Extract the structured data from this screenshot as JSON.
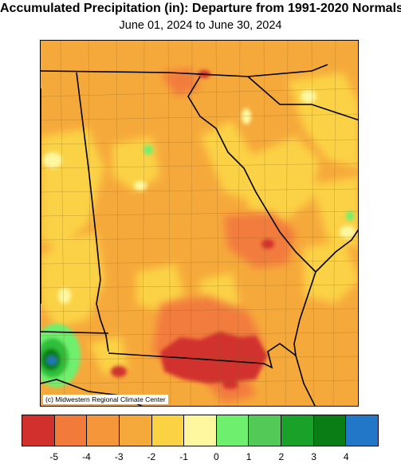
{
  "header": {
    "title": "Accumulated Precipitation (in): Departure from 1991-2020 Normals",
    "subtitle": "June 01, 2024 to June 30, 2024"
  },
  "map": {
    "credit": "(c) Midwestern Regional Climate Center",
    "colors": {
      "base": "#f6a93b",
      "dry_deep": "#d2302d",
      "dry_strong": "#f27b3c",
      "dry_moderate": "#f6a93b",
      "dry_mild": "#fbd244",
      "near_normal": "#fff7a0",
      "wet_mild": "#6ef06e",
      "wet_moderate": "#2fbf3a",
      "wet_strong": "#1aa12a",
      "wet_very": "#0a7d14",
      "wet_extreme": "#2277c8",
      "boundaries": "#000000"
    }
  },
  "legend": {
    "colors": [
      "#d2302d",
      "#f27b3c",
      "#f6963a",
      "#f6a93b",
      "#fbd244",
      "#fff7a0",
      "#6ef06e",
      "#53c957",
      "#1aa12a",
      "#0a7d14",
      "#2277c8"
    ],
    "ticks": [
      "-5",
      "-4",
      "-3",
      "-2",
      "-1",
      "0",
      "1",
      "2",
      "3",
      "4"
    ]
  }
}
